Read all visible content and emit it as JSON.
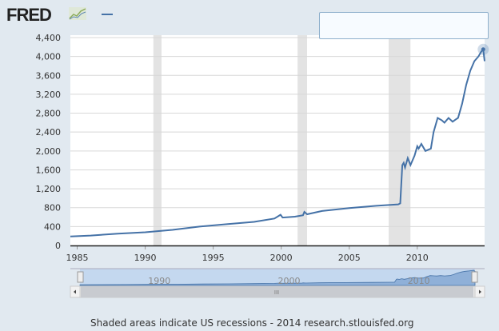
{
  "header": {
    "logo": "FRED",
    "logo_icon": "line-chart-icon"
  },
  "footer": {
    "note": "Shaded areas indicate US recessions - 2014 research.stlouisfed.org"
  },
  "colors": {
    "series": "#4572a7",
    "recession": "#e3e3e3",
    "navigator": "#c4d8ef"
  },
  "navigator": {
    "labels": [
      "1990",
      "2000",
      "2010"
    ],
    "scroll_label": "III"
  },
  "chart_data": {
    "type": "line",
    "title": "",
    "xlabel": "",
    "ylabel": "",
    "ylim": [
      0,
      4400
    ],
    "xlim": [
      1984.5,
      2014.95
    ],
    "yticks": [
      0,
      400,
      800,
      1200,
      1600,
      2000,
      2400,
      2800,
      3200,
      3600,
      4000,
      4400
    ],
    "ytick_labels": [
      "0",
      "400",
      "800",
      "1,200",
      "1,600",
      "2,000",
      "2,400",
      "2,800",
      "3,200",
      "3,600",
      "4,000",
      "4,400"
    ],
    "xticks": [
      1985,
      1990,
      1995,
      2000,
      2005,
      2010
    ],
    "xtick_labels": [
      "1985",
      "1990",
      "1995",
      "2000",
      "2005",
      "2010"
    ],
    "grid": true,
    "recessions": [
      [
        1990.6,
        1991.2
      ],
      [
        2001.2,
        2001.9
      ],
      [
        2007.9,
        2009.5
      ]
    ],
    "series": [
      {
        "points": [
          [
            1984.5,
            190
          ],
          [
            1986,
            210
          ],
          [
            1988,
            250
          ],
          [
            1990,
            280
          ],
          [
            1992,
            330
          ],
          [
            1994,
            400
          ],
          [
            1996,
            450
          ],
          [
            1998,
            500
          ],
          [
            1999.5,
            570
          ],
          [
            1999.95,
            650
          ],
          [
            2000.1,
            590
          ],
          [
            2001,
            610
          ],
          [
            2001.6,
            640
          ],
          [
            2001.7,
            710
          ],
          [
            2001.9,
            660
          ],
          [
            2003,
            730
          ],
          [
            2005,
            790
          ],
          [
            2007,
            840
          ],
          [
            2008.6,
            870
          ],
          [
            2008.75,
            890
          ],
          [
            2008.9,
            1700
          ],
          [
            2009.0,
            1750
          ],
          [
            2009.1,
            1650
          ],
          [
            2009.3,
            1850
          ],
          [
            2009.5,
            1700
          ],
          [
            2009.8,
            1900
          ],
          [
            2010.0,
            2100
          ],
          [
            2010.1,
            2050
          ],
          [
            2010.3,
            2150
          ],
          [
            2010.6,
            2000
          ],
          [
            2011.0,
            2050
          ],
          [
            2011.2,
            2400
          ],
          [
            2011.5,
            2700
          ],
          [
            2011.8,
            2650
          ],
          [
            2012.0,
            2600
          ],
          [
            2012.3,
            2700
          ],
          [
            2012.6,
            2620
          ],
          [
            2012.9,
            2680
          ],
          [
            2013.0,
            2700
          ],
          [
            2013.3,
            3000
          ],
          [
            2013.6,
            3400
          ],
          [
            2013.9,
            3700
          ],
          [
            2014.2,
            3900
          ],
          [
            2014.5,
            4000
          ],
          [
            2014.7,
            4100
          ],
          [
            2014.85,
            4150
          ],
          [
            2014.95,
            3900
          ]
        ]
      }
    ]
  }
}
